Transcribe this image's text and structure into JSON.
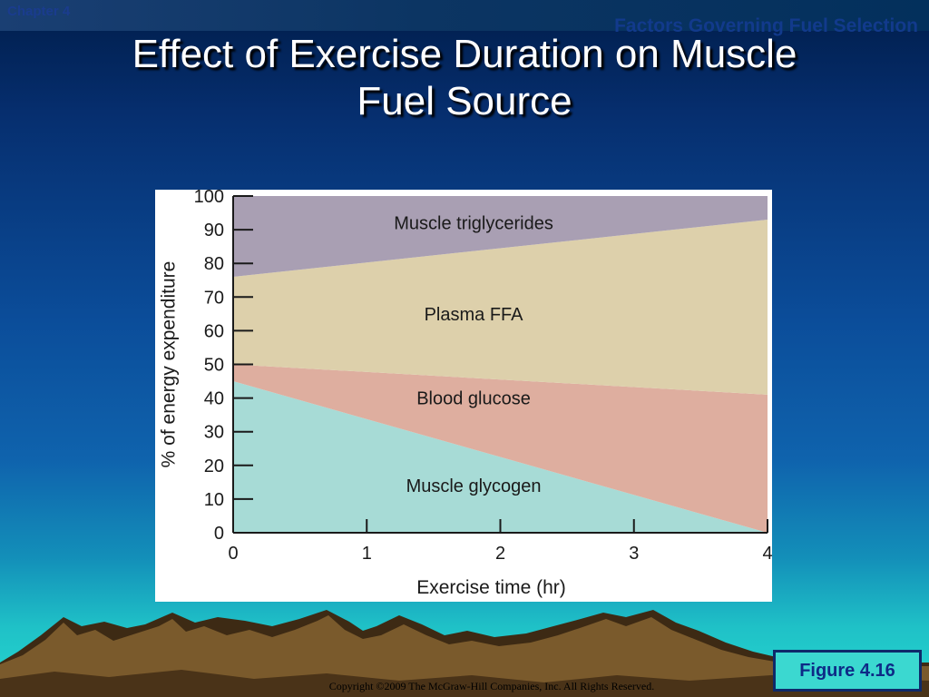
{
  "header": {
    "chapter": "Chapter 4",
    "section": "Factors Governing Fuel Selection"
  },
  "title": {
    "line1": "Effect of Exercise Duration on Muscle",
    "line2": "Fuel Source"
  },
  "chart_data": {
    "type": "area",
    "stacked": true,
    "x": [
      0,
      4
    ],
    "xticks": [
      "0",
      "1",
      "2",
      "3",
      "4"
    ],
    "xlabel": "Exercise time (hr)",
    "xlim": [
      0,
      4
    ],
    "yticks": [
      "0",
      "10",
      "20",
      "30",
      "40",
      "50",
      "60",
      "70",
      "80",
      "90",
      "100"
    ],
    "ylabel": "% of energy expenditure",
    "ylim": [
      0,
      100
    ],
    "grid": false,
    "series": [
      {
        "name": "Muscle glycogen",
        "values": [
          45,
          0
        ],
        "color": "#a7dbd6"
      },
      {
        "name": "Blood glucose",
        "values": [
          5,
          41
        ],
        "color": "#deae9f"
      },
      {
        "name": "Plasma FFA",
        "values": [
          26,
          52
        ],
        "color": "#ddd0ab"
      },
      {
        "name": "Muscle triglycerides",
        "values": [
          24,
          7
        ],
        "color": "#a99fb3"
      }
    ],
    "annotations": [
      {
        "text": "Muscle triglycerides",
        "x": 1.8,
        "y": 92
      },
      {
        "text": "Plasma FFA",
        "x": 1.8,
        "y": 65
      },
      {
        "text": "Blood glucose",
        "x": 1.8,
        "y": 40
      },
      {
        "text": "Muscle glycogen",
        "x": 1.8,
        "y": 14
      }
    ]
  },
  "figure_label": "Figure 4.16",
  "copyright": "Copyright ©2009 The McGraw-Hill Companies, Inc. All Rights Reserved.",
  "colors": {
    "title_text": "#ffffff",
    "badge_background": "#3bd8d0",
    "badge_text": "#0e2a86",
    "axis": "#1a1a1a"
  }
}
